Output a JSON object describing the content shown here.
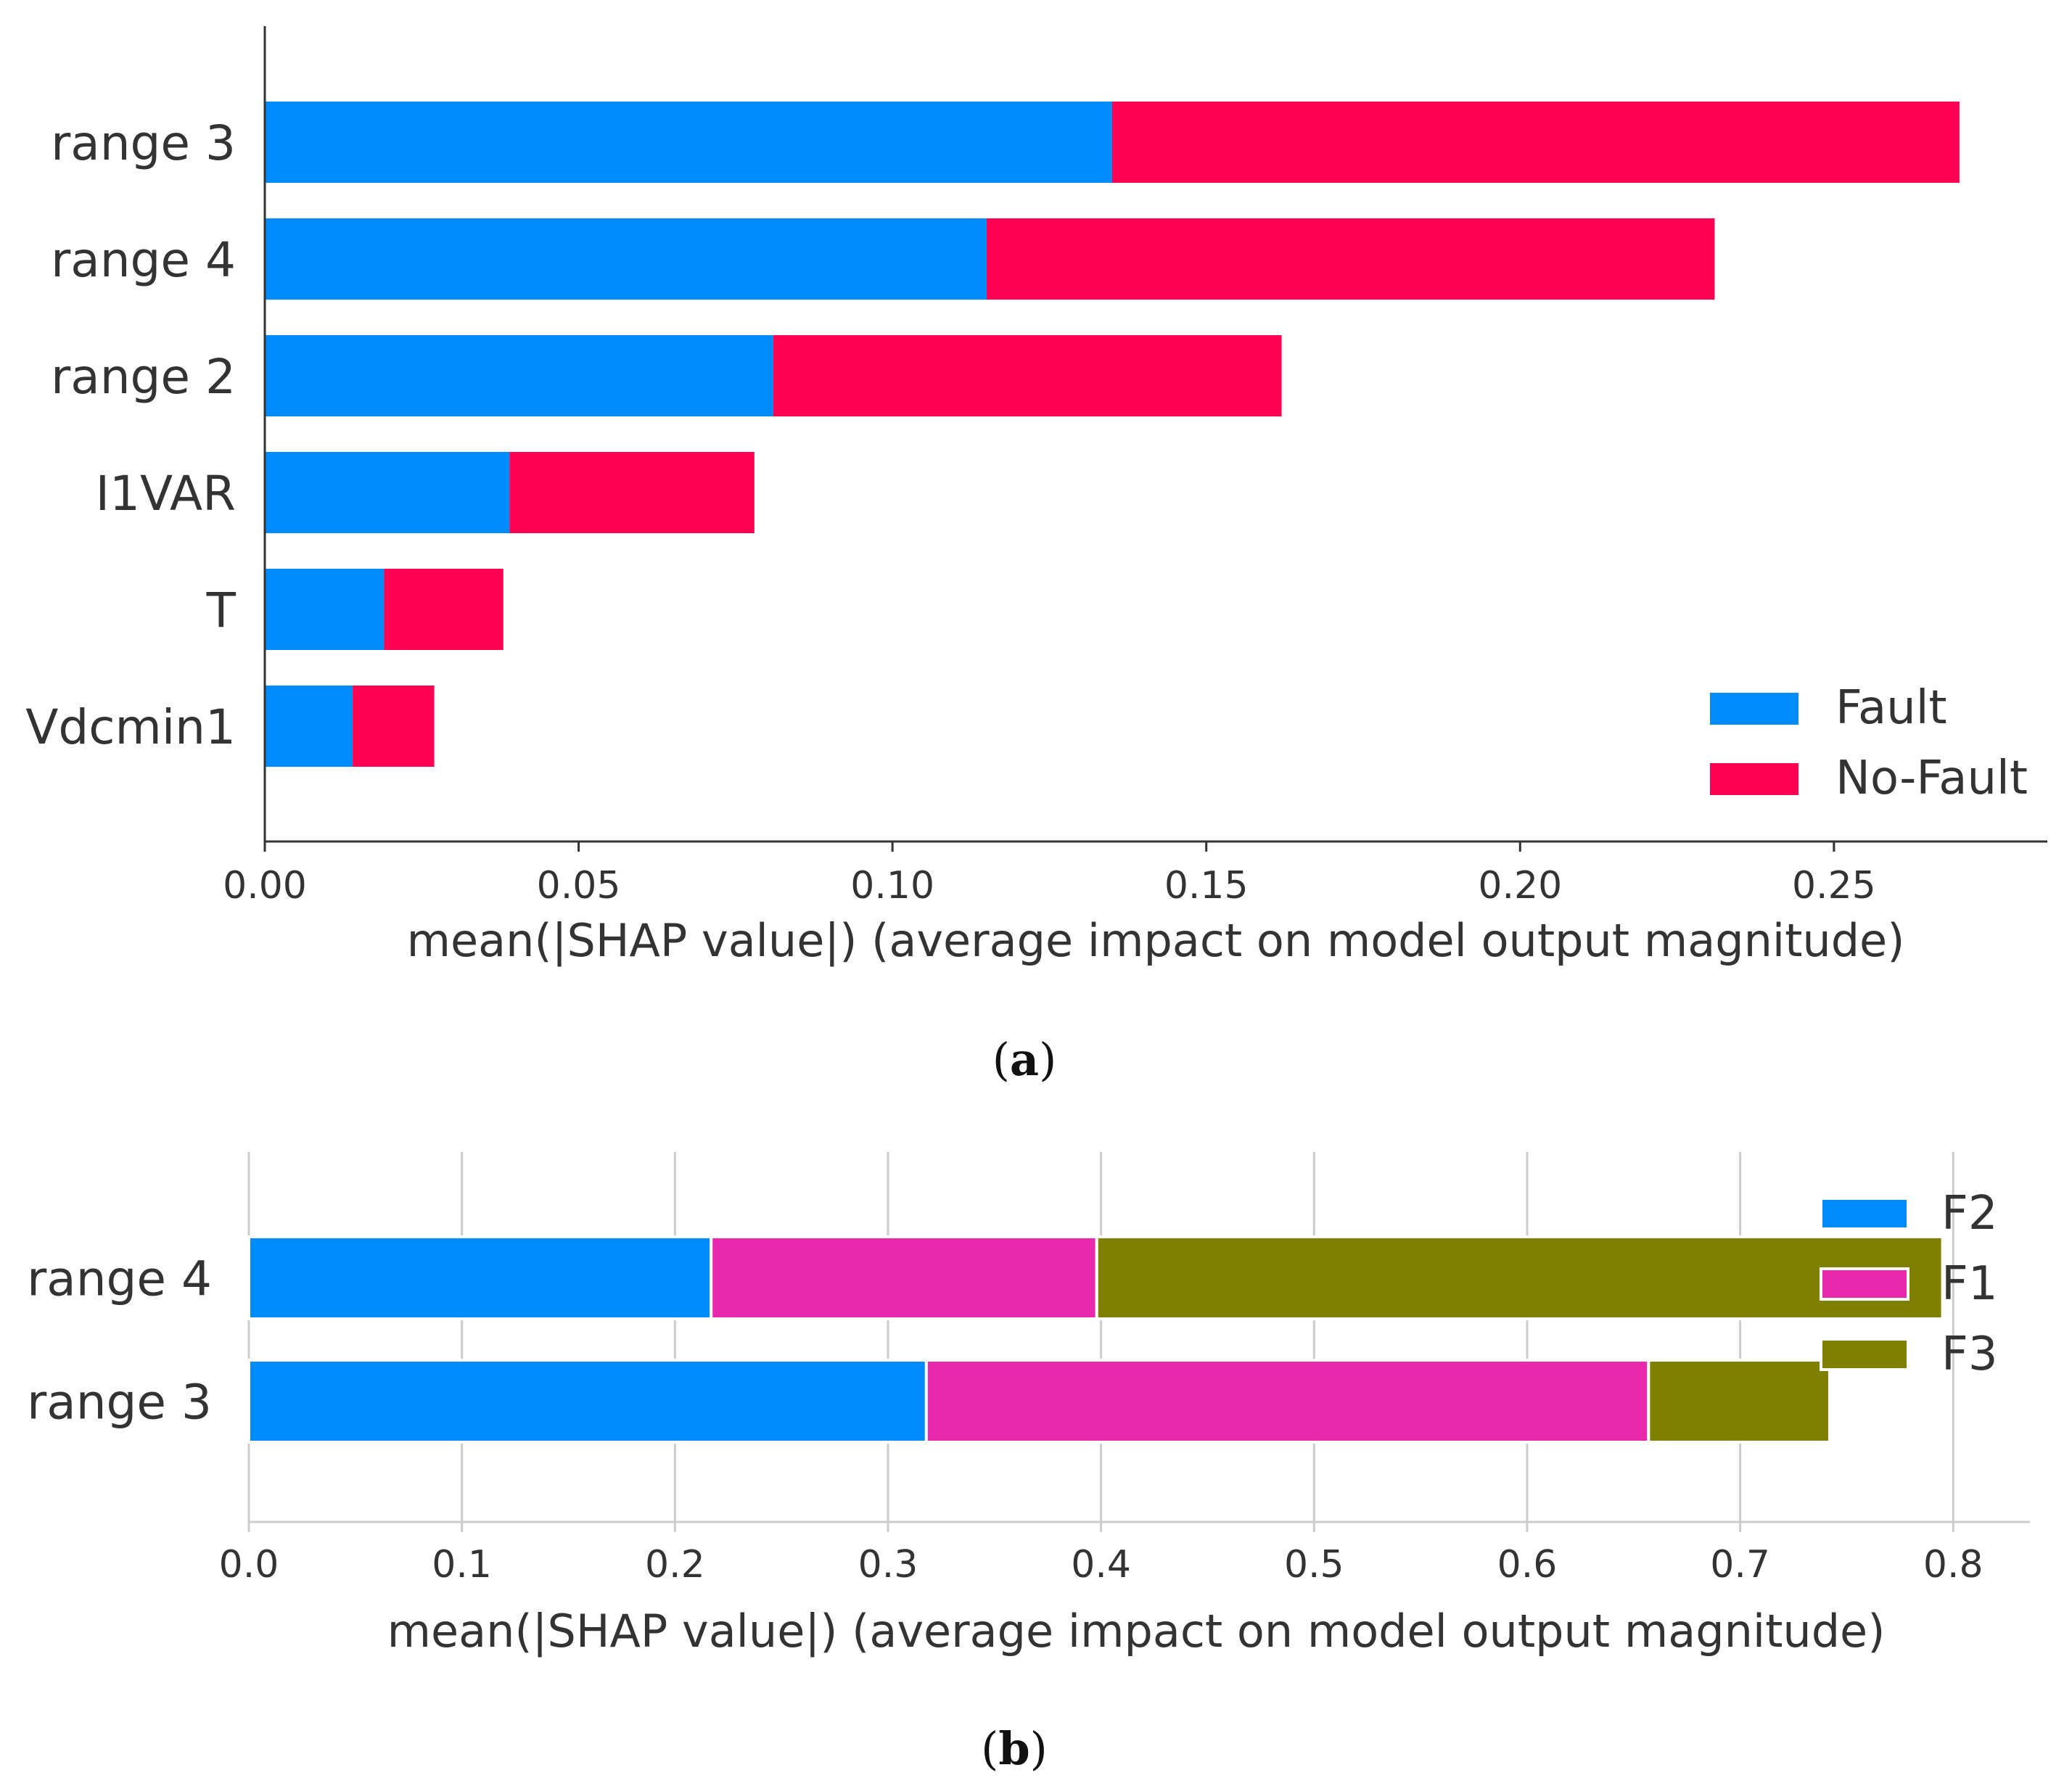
{
  "figure": {
    "caption_a": {
      "open": "(",
      "letter": "a",
      "close": ")"
    },
    "caption_b": {
      "open": "(",
      "letter": "b",
      "close": ")"
    }
  },
  "chart_data": [
    {
      "type": "bar",
      "orientation": "horizontal",
      "stacked": true,
      "title": "",
      "xlabel": "mean(|SHAP value|) (average impact on model output magnitude)",
      "ylabel": "",
      "categories": [
        "range 3",
        "range 4",
        "range 2",
        "I1VAR",
        "T",
        "Vdcmin1"
      ],
      "series": [
        {
          "name": "Fault",
          "color": "#008bfb",
          "values": [
            0.135,
            0.115,
            0.081,
            0.039,
            0.019,
            0.014
          ]
        },
        {
          "name": "No-Fault",
          "color": "#ff0052",
          "values": [
            0.135,
            0.116,
            0.081,
            0.039,
            0.019,
            0.013
          ]
        }
      ],
      "xlim": [
        0,
        0.284
      ],
      "xticks": [
        0,
        0.05,
        0.1,
        0.15,
        0.2,
        0.25
      ],
      "xtick_labels": [
        "0.00",
        "0.05",
        "0.10",
        "0.15",
        "0.20",
        "0.25"
      ],
      "legend": [
        "Fault",
        "No-Fault"
      ],
      "legend_position": "bottom-right",
      "grid": false
    },
    {
      "type": "bar",
      "orientation": "horizontal",
      "stacked": true,
      "title": "",
      "xlabel": "mean(|SHAP value|) (average impact on model output magnitude)",
      "ylabel": "",
      "categories": [
        "range 4",
        "range 3"
      ],
      "series": [
        {
          "name": "F2",
          "color": "#008bfb",
          "values": [
            0.217,
            0.318
          ]
        },
        {
          "name": "F1",
          "color": "#e829ad",
          "values": [
            0.181,
            0.339
          ]
        },
        {
          "name": "F3",
          "color": "#808000",
          "values": [
            0.397,
            0.085
          ]
        }
      ],
      "xlim": [
        0,
        0.836
      ],
      "xticks": [
        0.0,
        0.1,
        0.2,
        0.3,
        0.4,
        0.5,
        0.6,
        0.7,
        0.8
      ],
      "xtick_labels": [
        "0.0",
        "0.1",
        "0.2",
        "0.3",
        "0.4",
        "0.5",
        "0.6",
        "0.7",
        "0.8"
      ],
      "legend": [
        "F2",
        "F1",
        "F3"
      ],
      "legend_position": "top-right",
      "grid": true
    }
  ]
}
